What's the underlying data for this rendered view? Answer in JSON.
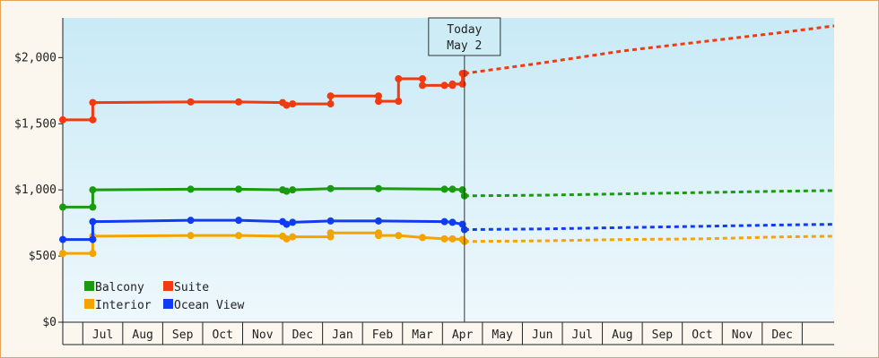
{
  "chart_data": {
    "type": "line",
    "title": "",
    "xlabel": "",
    "ylabel": "",
    "ylim": [
      0,
      2300
    ],
    "y_ticks": [
      {
        "value": 0,
        "label": "$0"
      },
      {
        "value": 500,
        "label": "$500"
      },
      {
        "value": 1000,
        "label": "$1,000"
      },
      {
        "value": 1500,
        "label": "$1,500"
      },
      {
        "value": 2000,
        "label": "$2,000"
      }
    ],
    "x_months": [
      "Jul",
      "Aug",
      "Sep",
      "Oct",
      "Nov",
      "Dec",
      "Jan",
      "Feb",
      "Mar",
      "Apr",
      "May",
      "Jun",
      "Jul",
      "Aug",
      "Sep",
      "Oct",
      "Nov",
      "Dec"
    ],
    "xlim": [
      0,
      19.3
    ],
    "today": {
      "line1": "Today",
      "line2": "May 2",
      "x": 10.05
    },
    "grid": false,
    "background": "sky-gradient",
    "legend": {
      "placement": "bottom-left"
    },
    "series": [
      {
        "name": "Balcony",
        "color": "#1a9a0e",
        "points": [
          [
            0,
            870
          ],
          [
            0.75,
            870
          ],
          [
            0.75,
            1000
          ],
          [
            3.2,
            1005
          ],
          [
            4.4,
            1005
          ],
          [
            5.5,
            1000
          ],
          [
            5.6,
            990
          ],
          [
            5.75,
            1000
          ],
          [
            6.7,
            1010
          ],
          [
            7.9,
            1010
          ],
          [
            9.55,
            1005
          ],
          [
            9.75,
            1005
          ],
          [
            10.0,
            1000
          ],
          [
            10.05,
            955
          ]
        ],
        "projection": [
          [
            10.05,
            955
          ],
          [
            12,
            960
          ],
          [
            14,
            970
          ],
          [
            16,
            980
          ],
          [
            18,
            990
          ],
          [
            19.3,
            995
          ]
        ]
      },
      {
        "name": "Suite",
        "color": "#f03a10",
        "points": [
          [
            0,
            1530
          ],
          [
            0.75,
            1530
          ],
          [
            0.75,
            1660
          ],
          [
            3.2,
            1665
          ],
          [
            4.4,
            1665
          ],
          [
            5.5,
            1660
          ],
          [
            5.6,
            1640
          ],
          [
            5.75,
            1650
          ],
          [
            6.7,
            1650
          ],
          [
            6.7,
            1710
          ],
          [
            7.9,
            1710
          ],
          [
            7.9,
            1670
          ],
          [
            8.4,
            1670
          ],
          [
            8.4,
            1840
          ],
          [
            9.0,
            1840
          ],
          [
            9.0,
            1790
          ],
          [
            9.55,
            1790
          ],
          [
            9.75,
            1790
          ],
          [
            9.75,
            1800
          ],
          [
            10.0,
            1800
          ],
          [
            10.0,
            1880
          ],
          [
            10.05,
            1880
          ]
        ],
        "projection": [
          [
            10.05,
            1880
          ],
          [
            12,
            1960
          ],
          [
            14,
            2050
          ],
          [
            16,
            2120
          ],
          [
            18,
            2190
          ],
          [
            19.3,
            2240
          ]
        ]
      },
      {
        "name": "Interior",
        "color": "#f5a300",
        "points": [
          [
            0,
            520
          ],
          [
            0.75,
            520
          ],
          [
            0.75,
            650
          ],
          [
            3.2,
            655
          ],
          [
            4.4,
            655
          ],
          [
            5.5,
            650
          ],
          [
            5.6,
            630
          ],
          [
            5.75,
            645
          ],
          [
            6.7,
            645
          ],
          [
            6.7,
            675
          ],
          [
            7.9,
            675
          ],
          [
            7.9,
            655
          ],
          [
            8.4,
            655
          ],
          [
            9.0,
            640
          ],
          [
            9.55,
            630
          ],
          [
            9.75,
            630
          ],
          [
            10.0,
            625
          ],
          [
            10.05,
            610
          ]
        ],
        "projection": [
          [
            10.05,
            610
          ],
          [
            12,
            615
          ],
          [
            14,
            625
          ],
          [
            16,
            630
          ],
          [
            18,
            645
          ],
          [
            19.3,
            650
          ]
        ]
      },
      {
        "name": "Ocean View",
        "color": "#0f3cf2",
        "points": [
          [
            0,
            625
          ],
          [
            0.75,
            625
          ],
          [
            0.75,
            760
          ],
          [
            3.2,
            770
          ],
          [
            4.4,
            770
          ],
          [
            5.5,
            760
          ],
          [
            5.6,
            740
          ],
          [
            5.75,
            755
          ],
          [
            6.7,
            765
          ],
          [
            7.9,
            765
          ],
          [
            9.55,
            760
          ],
          [
            9.75,
            755
          ],
          [
            10.0,
            740
          ],
          [
            10.05,
            700
          ]
        ],
        "projection": [
          [
            10.05,
            700
          ],
          [
            12,
            705
          ],
          [
            14,
            715
          ],
          [
            16,
            725
          ],
          [
            18,
            735
          ],
          [
            19.3,
            740
          ]
        ]
      }
    ]
  }
}
